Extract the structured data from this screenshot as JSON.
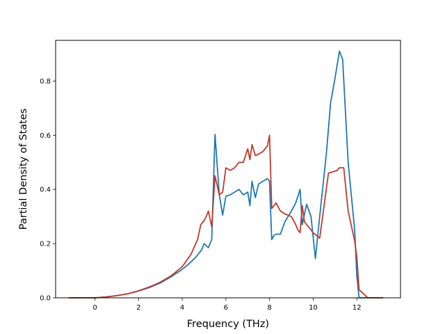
{
  "chart_data": {
    "type": "line",
    "title": "",
    "xlabel": "Frequency (THz)",
    "ylabel": "Partial Density of States",
    "xlim": [
      -1.8,
      14.0
    ],
    "ylim": [
      0.0,
      0.95
    ],
    "xticks": [
      0,
      2,
      4,
      6,
      8,
      10,
      12
    ],
    "xtick_labels": [
      "0",
      "2",
      "4",
      "6",
      "8",
      "10",
      "12"
    ],
    "yticks": [
      0.0,
      0.2,
      0.4,
      0.6,
      0.8
    ],
    "ytick_labels": [
      "0.0",
      "0.2",
      "0.4",
      "0.6",
      "0.8"
    ],
    "grid": false,
    "legend": "none",
    "series": [
      {
        "color": "#1f77b4",
        "x": [
          -1.2,
          0.0,
          0.5,
          1.0,
          1.5,
          2.0,
          2.5,
          3.0,
          3.5,
          4.0,
          4.3,
          4.6,
          4.9,
          5.0,
          5.2,
          5.35,
          5.5,
          5.7,
          5.85,
          6.0,
          6.2,
          6.4,
          6.6,
          6.8,
          7.0,
          7.1,
          7.2,
          7.35,
          7.5,
          7.7,
          7.9,
          8.0,
          8.1,
          8.2,
          8.3,
          8.5,
          8.7,
          9.0,
          9.2,
          9.4,
          9.5,
          9.7,
          9.9,
          10.1,
          10.3,
          10.6,
          10.8,
          11.0,
          11.2,
          11.35,
          11.6,
          11.9,
          12.0,
          12.1,
          12.5,
          13.2
        ],
        "y": [
          0.0,
          0.0,
          0.003,
          0.008,
          0.015,
          0.025,
          0.038,
          0.055,
          0.078,
          0.105,
          0.125,
          0.148,
          0.178,
          0.2,
          0.185,
          0.215,
          0.603,
          0.38,
          0.305,
          0.375,
          0.38,
          0.39,
          0.4,
          0.38,
          0.39,
          0.34,
          0.43,
          0.37,
          0.42,
          0.43,
          0.44,
          0.43,
          0.215,
          0.23,
          0.235,
          0.235,
          0.28,
          0.32,
          0.35,
          0.4,
          0.27,
          0.345,
          0.3,
          0.145,
          0.3,
          0.53,
          0.72,
          0.81,
          0.91,
          0.88,
          0.5,
          0.25,
          0.08,
          0.0,
          0.0,
          0.0
        ]
      },
      {
        "color": "#c0392b",
        "x": [
          -1.2,
          0.0,
          0.5,
          1.0,
          1.5,
          2.0,
          2.5,
          3.0,
          3.5,
          4.0,
          4.4,
          4.7,
          4.85,
          5.0,
          5.1,
          5.2,
          5.35,
          5.5,
          5.7,
          5.85,
          6.0,
          6.2,
          6.4,
          6.6,
          6.8,
          7.0,
          7.1,
          7.2,
          7.35,
          7.5,
          7.7,
          7.9,
          8.0,
          8.1,
          8.3,
          8.5,
          8.7,
          9.0,
          9.2,
          9.3,
          9.4,
          9.5,
          9.6,
          9.8,
          10.0,
          10.3,
          10.5,
          10.7,
          10.9,
          11.1,
          11.2,
          11.4,
          11.6,
          11.9,
          12.0,
          12.1,
          12.5,
          13.2
        ],
        "y": [
          0.0,
          0.0,
          0.003,
          0.008,
          0.015,
          0.026,
          0.04,
          0.058,
          0.082,
          0.115,
          0.16,
          0.215,
          0.27,
          0.285,
          0.3,
          0.32,
          0.262,
          0.45,
          0.38,
          0.39,
          0.48,
          0.47,
          0.48,
          0.5,
          0.5,
          0.55,
          0.51,
          0.565,
          0.525,
          0.53,
          0.54,
          0.56,
          0.6,
          0.33,
          0.35,
          0.32,
          0.31,
          0.3,
          0.27,
          0.25,
          0.24,
          0.34,
          0.28,
          0.26,
          0.24,
          0.22,
          0.34,
          0.46,
          0.465,
          0.47,
          0.48,
          0.48,
          0.32,
          0.21,
          0.15,
          0.03,
          0.0,
          0.0
        ]
      }
    ]
  }
}
